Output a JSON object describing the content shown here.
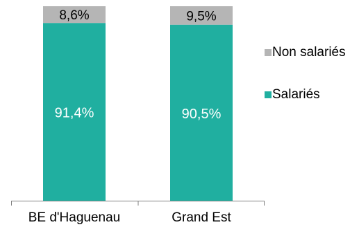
{
  "chart_data": {
    "type": "bar",
    "stacked": true,
    "percent_stacked": true,
    "categories": [
      "BE d'Haguenau",
      "Grand Est"
    ],
    "series": [
      {
        "name": "Salariés",
        "values": [
          91.4,
          90.5
        ],
        "labels": [
          "91,4%",
          "90,5%"
        ],
        "color": "#20AFA0"
      },
      {
        "name": "Non salariés",
        "values": [
          8.6,
          9.5
        ],
        "labels": [
          "8,6%",
          "9,5%"
        ],
        "color": "#B5B5B5"
      }
    ],
    "ylim": [
      0,
      100
    ],
    "grid": false,
    "legend": {
      "placement": "right",
      "entries": [
        "Non salariés",
        "Salariés"
      ]
    }
  }
}
